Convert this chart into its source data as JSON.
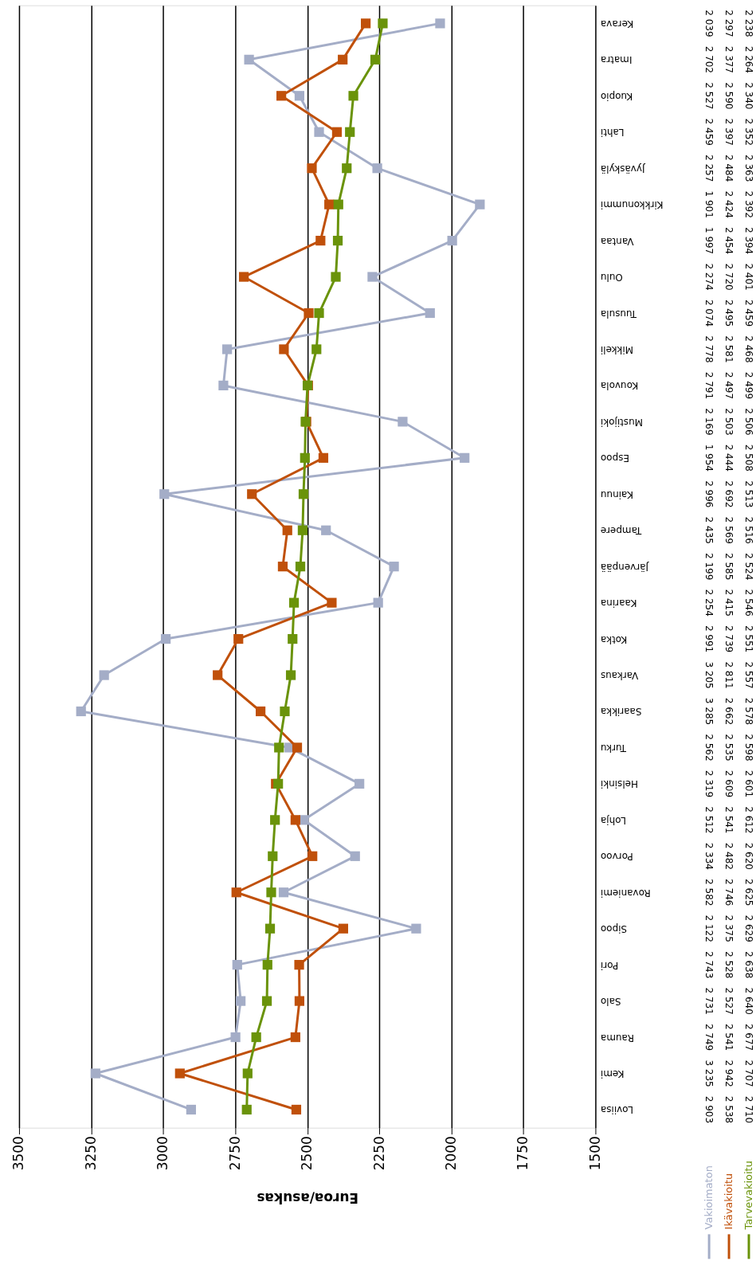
{
  "chart_data": {
    "type": "line",
    "orientation": "horizontal",
    "xlabel": "Euroa/asukas",
    "categories": [
      "Kerava",
      "Imatra",
      "Kuopio",
      "Lahti",
      "Jyväskylä",
      "Kirkkonummi",
      "Vantaa",
      "Oulu",
      "Tuusula",
      "Mikkeli",
      "Kouvola",
      "Mustijoki",
      "Espoo",
      "Kainuu",
      "Tampere",
      "Järvenpää",
      "Kaarina",
      "Kotka",
      "Varkaus",
      "Saarikka",
      "Turku",
      "Helsinki",
      "Lohja",
      "Porvoo",
      "Rovaniemi",
      "Sipoo",
      "Pori",
      "Salo",
      "Rauma",
      "Kemi",
      "Loviisa"
    ],
    "series": [
      {
        "name": "Vakioimaton",
        "color": "#a4adc7",
        "values": [
          2039,
          2702,
          2527,
          2459,
          2257,
          1901,
          1997,
          2274,
          2074,
          2778,
          2791,
          2169,
          1954,
          2996,
          2435,
          2199,
          2254,
          2991,
          3205,
          3285,
          2562,
          2319,
          2512,
          2334,
          2582,
          2122,
          2743,
          2731,
          2749,
          3235,
          2903
        ],
        "value_labels": [
          "2 039",
          "2 702",
          "2 527",
          "2 459",
          "2 257",
          "1 901",
          "1 997",
          "2 274",
          "2 074",
          "2 778",
          "2 791",
          "2 169",
          "1 954",
          "2 996",
          "2 435",
          "2 199",
          "2 254",
          "2 991",
          "3 205",
          "3 285",
          "2 562",
          "2 319",
          "2 512",
          "2 334",
          "2 582",
          "2 122",
          "2 743",
          "2 731",
          "2 749",
          "3 235",
          "2 903"
        ]
      },
      {
        "name": "Ikävakioitu",
        "color": "#c0500a",
        "values": [
          2297,
          2377,
          2590,
          2397,
          2484,
          2424,
          2454,
          2720,
          2495,
          2581,
          2497,
          2503,
          2444,
          2692,
          2569,
          2585,
          2415,
          2739,
          2811,
          2662,
          2535,
          2609,
          2541,
          2482,
          2746,
          2375,
          2528,
          2527,
          2541,
          2942,
          2538
        ],
        "value_labels": [
          "2 297",
          "2 377",
          "2 590",
          "2 397",
          "2 484",
          "2 424",
          "2 454",
          "2 720",
          "2 495",
          "2 581",
          "2 497",
          "2 503",
          "2 444",
          "2 692",
          "2 569",
          "2 585",
          "2 415",
          "2 739",
          "2 811",
          "2 662",
          "2 535",
          "2 609",
          "2 541",
          "2 482",
          "2 746",
          "2 375",
          "2 528",
          "2 527",
          "2 541",
          "2 942",
          "2 538"
        ]
      },
      {
        "name": "Tarvevakioitu",
        "color": "#6a930a",
        "values": [
          2238,
          2264,
          2340,
          2352,
          2363,
          2392,
          2394,
          2401,
          2459,
          2468,
          2499,
          2506,
          2508,
          2513,
          2516,
          2524,
          2546,
          2551,
          2557,
          2578,
          2598,
          2601,
          2612,
          2620,
          2625,
          2629,
          2638,
          2640,
          2677,
          2707,
          2710
        ],
        "value_labels": [
          "2 238",
          "2 264",
          "2 340",
          "2 352",
          "2 363",
          "2 392",
          "2 394",
          "2 401",
          "2 459",
          "2 468",
          "2 499",
          "2 506",
          "2 508",
          "2 513",
          "2 516",
          "2 524",
          "2 546",
          "2 551",
          "2 557",
          "2 578",
          "2 598",
          "2 601",
          "2 612",
          "2 620",
          "2 625",
          "2 629",
          "2 638",
          "2 640",
          "2 677",
          "2 707",
          "2 710"
        ]
      }
    ],
    "xlim": [
      3500,
      1500
    ],
    "xticks": [
      3500,
      3250,
      3000,
      2750,
      2500,
      2250,
      2000,
      1750,
      1500
    ],
    "grid": "x",
    "marker": "square",
    "line_style": "solid",
    "legend": "bottom right"
  }
}
